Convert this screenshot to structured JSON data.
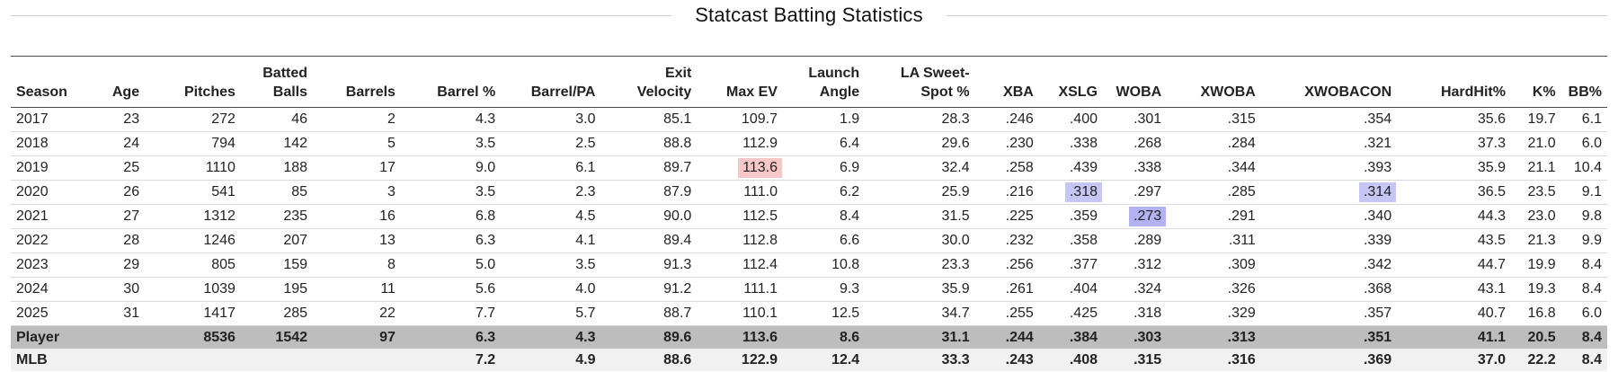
{
  "title": "Statcast Batting Statistics",
  "columns": [
    "Season",
    "Age",
    "Pitches",
    "Batted Balls",
    "Barrels",
    "Barrel %",
    "Barrel/PA",
    "Exit Velocity",
    "Max EV",
    "Launch Angle",
    "LA Sweet-Spot %",
    "XBA",
    "XSLG",
    "WOBA",
    "XWOBA",
    "XWOBACON",
    "HardHit%",
    "K%",
    "BB%"
  ],
  "rows": [
    [
      "2017",
      "23",
      "272",
      "46",
      "2",
      "4.3",
      "3.0",
      "85.1",
      "109.7",
      "1.9",
      "28.3",
      ".246",
      ".400",
      ".301",
      ".315",
      ".354",
      "35.6",
      "19.7",
      "6.1"
    ],
    [
      "2018",
      "24",
      "794",
      "142",
      "5",
      "3.5",
      "2.5",
      "88.8",
      "112.9",
      "6.4",
      "29.6",
      ".230",
      ".338",
      ".268",
      ".284",
      ".321",
      "37.3",
      "21.0",
      "6.0"
    ],
    [
      "2019",
      "25",
      "1110",
      "188",
      "17",
      "9.0",
      "6.1",
      "89.7",
      "113.6",
      "6.9",
      "32.4",
      ".258",
      ".439",
      ".338",
      ".344",
      ".393",
      "35.9",
      "21.1",
      "10.4"
    ],
    [
      "2020",
      "26",
      "541",
      "85",
      "3",
      "3.5",
      "2.3",
      "87.9",
      "111.0",
      "6.2",
      "25.9",
      ".216",
      ".318",
      ".297",
      ".285",
      ".314",
      "36.5",
      "23.5",
      "9.1"
    ],
    [
      "2021",
      "27",
      "1312",
      "235",
      "16",
      "6.8",
      "4.5",
      "90.0",
      "112.5",
      "8.4",
      "31.5",
      ".225",
      ".359",
      ".273",
      ".291",
      ".340",
      "44.3",
      "23.0",
      "9.8"
    ],
    [
      "2022",
      "28",
      "1246",
      "207",
      "13",
      "6.3",
      "4.1",
      "89.4",
      "112.8",
      "6.6",
      "30.0",
      ".232",
      ".358",
      ".289",
      ".311",
      ".339",
      "43.5",
      "21.3",
      "9.9"
    ],
    [
      "2023",
      "29",
      "805",
      "159",
      "8",
      "5.0",
      "3.5",
      "91.3",
      "112.4",
      "10.8",
      "23.3",
      ".256",
      ".377",
      ".312",
      ".309",
      ".342",
      "44.7",
      "19.9",
      "8.4"
    ],
    [
      "2024",
      "30",
      "1039",
      "195",
      "11",
      "5.6",
      "4.0",
      "91.2",
      "111.1",
      "9.3",
      "35.9",
      ".261",
      ".404",
      ".324",
      ".326",
      ".368",
      "43.1",
      "19.3",
      "8.4"
    ],
    [
      "2025",
      "31",
      "1417",
      "285",
      "22",
      "7.7",
      "5.7",
      "88.7",
      "110.1",
      "12.5",
      "34.7",
      ".255",
      ".425",
      ".318",
      ".329",
      ".357",
      "40.7",
      "16.8",
      "6.0"
    ]
  ],
  "summary_rows": [
    {
      "kind": "player",
      "cells": [
        "Player",
        "",
        "8536",
        "1542",
        "97",
        "6.3",
        "4.3",
        "89.6",
        "113.6",
        "8.6",
        "31.1",
        ".244",
        ".384",
        ".303",
        ".313",
        ".351",
        "41.1",
        "20.5",
        "8.4"
      ]
    },
    {
      "kind": "mlb",
      "cells": [
        "MLB",
        "",
        "",
        "",
        "",
        "7.2",
        "4.9",
        "88.6",
        "122.9",
        "12.4",
        "33.3",
        ".243",
        ".408",
        ".315",
        ".316",
        ".369",
        "37.0",
        "22.2",
        "8.4"
      ]
    }
  ],
  "highlights": [
    {
      "row": 2,
      "col": 8,
      "color": "#f7c6c6"
    },
    {
      "row": 3,
      "col": 12,
      "color": "#c6c6f5"
    },
    {
      "row": 3,
      "col": 15,
      "color": "#c6c6f5"
    },
    {
      "row": 4,
      "col": 13,
      "color": "#b2b2f0"
    }
  ]
}
